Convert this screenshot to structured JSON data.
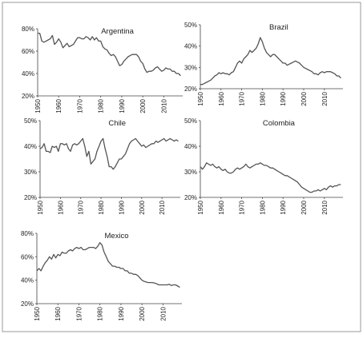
{
  "chart_data": [
    {
      "type": "line",
      "title": "Argentina",
      "xlim": [
        1950,
        2019
      ],
      "ylim": [
        20,
        80
      ],
      "yticks": [
        "20%",
        "40%",
        "60%",
        "80%"
      ],
      "xticks": [
        "1950",
        "1960",
        "1970",
        "1980",
        "1990",
        "2000",
        "2010"
      ],
      "x": [
        1950,
        1951,
        1952,
        1953,
        1954,
        1955,
        1956,
        1957,
        1958,
        1959,
        1960,
        1961,
        1962,
        1963,
        1964,
        1965,
        1966,
        1967,
        1968,
        1969,
        1970,
        1971,
        1972,
        1973,
        1974,
        1975,
        1976,
        1977,
        1978,
        1979,
        1980,
        1981,
        1982,
        1983,
        1984,
        1985,
        1986,
        1987,
        1988,
        1989,
        1990,
        1991,
        1992,
        1993,
        1994,
        1995,
        1996,
        1997,
        1998,
        1999,
        2000,
        2001,
        2002,
        2003,
        2004,
        2005,
        2006,
        2007,
        2008,
        2009,
        2010,
        2011,
        2012,
        2013,
        2014,
        2015,
        2016,
        2017,
        2018
      ],
      "y": [
        76,
        76,
        69,
        68,
        69,
        70,
        71,
        74,
        66,
        68,
        71,
        68,
        63,
        65,
        67,
        64,
        65,
        66,
        69,
        72,
        72,
        71,
        71,
        73,
        72,
        70,
        73,
        70,
        72,
        69,
        69,
        64,
        62,
        61,
        58,
        56,
        57,
        55,
        51,
        47,
        48,
        51,
        53,
        55,
        56,
        57,
        57,
        57,
        55,
        51,
        49,
        44,
        41,
        42,
        42,
        43,
        45,
        46,
        44,
        42,
        43,
        45,
        44,
        44,
        42,
        42,
        40,
        40,
        38
      ]
    },
    {
      "type": "line",
      "title": "Brazil",
      "xlim": [
        1950,
        2019
      ],
      "ylim": [
        20,
        50
      ],
      "yticks": [
        "20%",
        "30%",
        "40%",
        "50%"
      ],
      "xticks": [
        "1950",
        "1960",
        "1970",
        "1980",
        "1990",
        "2000",
        "2010"
      ],
      "x": [
        1950,
        1951,
        1952,
        1953,
        1954,
        1955,
        1956,
        1957,
        1958,
        1959,
        1960,
        1961,
        1962,
        1963,
        1964,
        1965,
        1966,
        1967,
        1968,
        1969,
        1970,
        1971,
        1972,
        1973,
        1974,
        1975,
        1976,
        1977,
        1978,
        1979,
        1980,
        1981,
        1982,
        1983,
        1984,
        1985,
        1986,
        1987,
        1988,
        1989,
        1990,
        1991,
        1992,
        1993,
        1994,
        1995,
        1996,
        1997,
        1998,
        1999,
        2000,
        2001,
        2002,
        2003,
        2004,
        2005,
        2006,
        2007,
        2008,
        2009,
        2010,
        2011,
        2012,
        2013,
        2014,
        2015,
        2016,
        2017,
        2018
      ],
      "y": [
        22,
        22,
        22.5,
        23,
        23.5,
        24,
        25,
        26,
        26.5,
        27.5,
        27,
        27.5,
        27,
        27,
        26.5,
        27.5,
        28,
        30,
        32,
        33,
        32,
        34,
        35,
        36,
        38,
        37,
        38,
        39,
        41,
        44,
        42,
        39,
        37,
        36,
        35,
        36,
        36,
        35,
        34,
        33,
        32,
        32,
        31,
        31.5,
        32,
        32.5,
        33,
        32.5,
        32,
        31,
        30,
        29.5,
        29,
        28.5,
        28,
        27,
        27,
        26.5,
        27.5,
        28,
        27.5,
        28,
        28,
        28,
        27.5,
        27,
        26,
        26,
        25
      ]
    },
    {
      "type": "line",
      "title": "Chile",
      "xlim": [
        1950,
        2019
      ],
      "ylim": [
        20,
        50
      ],
      "yticks": [
        "20%",
        "30%",
        "40%",
        "50%"
      ],
      "xticks": [
        "1950",
        "1960",
        "1970",
        "1980",
        "1990",
        "2000",
        "2010"
      ],
      "x": [
        1950,
        1951,
        1952,
        1953,
        1954,
        1955,
        1956,
        1957,
        1958,
        1959,
        1960,
        1961,
        1962,
        1963,
        1964,
        1965,
        1966,
        1967,
        1968,
        1969,
        1970,
        1971,
        1972,
        1973,
        1974,
        1975,
        1976,
        1977,
        1978,
        1979,
        1980,
        1981,
        1982,
        1983,
        1984,
        1985,
        1986,
        1987,
        1988,
        1989,
        1990,
        1991,
        1992,
        1993,
        1994,
        1995,
        1996,
        1997,
        1998,
        1999,
        2000,
        2001,
        2002,
        2003,
        2004,
        2005,
        2006,
        2007,
        2008,
        2009,
        2010,
        2011,
        2012,
        2013,
        2014,
        2015,
        2016,
        2017,
        2018
      ],
      "y": [
        39,
        39.5,
        41,
        38,
        38,
        37.5,
        40,
        39.5,
        40,
        38,
        41,
        41,
        40.5,
        41,
        39,
        38,
        40.5,
        41,
        40.5,
        41,
        42,
        43,
        40,
        36,
        38,
        33,
        34,
        35,
        38,
        40,
        42,
        43,
        39,
        36,
        32,
        32,
        31,
        32,
        33.5,
        35,
        35,
        36,
        37,
        39,
        41,
        42,
        42.5,
        43,
        42,
        41,
        40,
        40.5,
        39.5,
        40,
        40.5,
        41,
        41,
        42,
        41.5,
        42,
        42.5,
        43,
        42,
        42.5,
        43,
        42.5,
        42,
        42.5,
        42
      ]
    },
    {
      "type": "line",
      "title": "Colombia",
      "xlim": [
        1950,
        2019
      ],
      "ylim": [
        20,
        50
      ],
      "yticks": [
        "20%",
        "30%",
        "40%",
        "50%"
      ],
      "xticks": [
        "1950",
        "1960",
        "1970",
        "1980",
        "1990",
        "2000",
        "2010"
      ],
      "x": [
        1950,
        1951,
        1952,
        1953,
        1954,
        1955,
        1956,
        1957,
        1958,
        1959,
        1960,
        1961,
        1962,
        1963,
        1964,
        1965,
        1966,
        1967,
        1968,
        1969,
        1970,
        1971,
        1972,
        1973,
        1974,
        1975,
        1976,
        1977,
        1978,
        1979,
        1980,
        1981,
        1982,
        1983,
        1984,
        1985,
        1986,
        1987,
        1988,
        1989,
        1990,
        1991,
        1992,
        1993,
        1994,
        1995,
        1996,
        1997,
        1998,
        1999,
        2000,
        2001,
        2002,
        2003,
        2004,
        2005,
        2006,
        2007,
        2008,
        2009,
        2010,
        2011,
        2012,
        2013,
        2014,
        2015,
        2016,
        2017,
        2018
      ],
      "y": [
        32,
        31,
        32,
        33.5,
        33,
        32.5,
        33,
        32,
        31.5,
        32,
        31,
        30.5,
        31,
        30,
        29.5,
        29.5,
        30,
        31,
        31.5,
        31,
        31.5,
        32,
        33,
        32,
        31.5,
        32,
        32.5,
        33,
        33,
        33.5,
        33,
        32.5,
        32.5,
        32,
        31.5,
        31.5,
        31,
        30.5,
        30,
        29.5,
        29,
        28.5,
        28.5,
        28,
        27.5,
        27,
        26.5,
        26,
        25,
        24,
        23.5,
        23,
        22.5,
        22,
        22,
        22.5,
        22.5,
        23,
        22.5,
        23,
        23.5,
        23,
        24,
        24.5,
        24,
        24.5,
        24.5,
        25,
        25
      ]
    },
    {
      "type": "line",
      "title": "Mexico",
      "xlim": [
        1950,
        2019
      ],
      "ylim": [
        20,
        80
      ],
      "yticks": [
        "20%",
        "40%",
        "60%",
        "80%"
      ],
      "xticks": [
        "1950",
        "1960",
        "1970",
        "1980",
        "1990",
        "2000",
        "2010"
      ],
      "x": [
        1950,
        1951,
        1952,
        1953,
        1954,
        1955,
        1956,
        1957,
        1958,
        1959,
        1960,
        1961,
        1962,
        1963,
        1964,
        1965,
        1966,
        1967,
        1968,
        1969,
        1970,
        1971,
        1972,
        1973,
        1974,
        1975,
        1976,
        1977,
        1978,
        1979,
        1980,
        1981,
        1982,
        1983,
        1984,
        1985,
        1986,
        1987,
        1988,
        1989,
        1990,
        1991,
        1992,
        1993,
        1994,
        1995,
        1996,
        1997,
        1998,
        1999,
        2000,
        2001,
        2002,
        2003,
        2004,
        2005,
        2006,
        2007,
        2008,
        2009,
        2010,
        2011,
        2012,
        2013,
        2014,
        2015,
        2016,
        2017,
        2018
      ],
      "y": [
        48,
        50,
        48,
        52,
        55,
        57,
        60,
        58,
        62,
        59,
        62,
        61,
        64,
        63,
        63,
        65,
        66,
        65,
        67,
        68,
        67,
        68,
        66,
        66,
        67,
        68,
        68,
        68,
        67,
        69,
        72,
        70,
        64,
        60,
        56,
        54,
        52,
        52,
        51,
        51,
        50,
        50,
        48,
        48,
        46,
        46,
        45,
        45,
        44,
        42,
        40,
        39,
        38.5,
        38,
        38,
        38,
        37.5,
        37,
        36,
        36,
        36,
        36,
        36,
        36.5,
        35.5,
        36,
        36,
        35,
        34
      ]
    }
  ]
}
